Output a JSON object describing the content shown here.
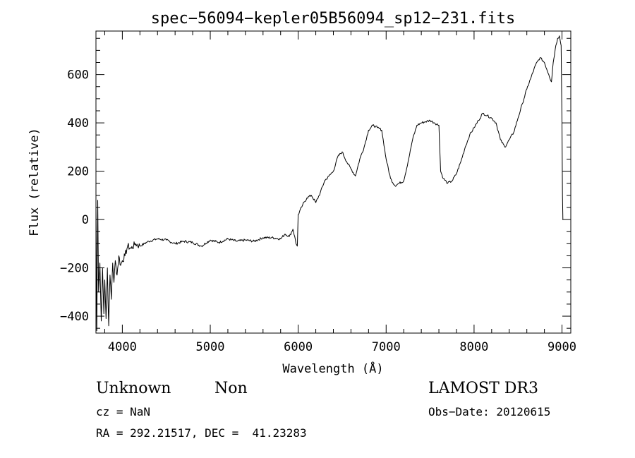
{
  "chart_data": {
    "type": "line",
    "title": "spec−56094−kepler05B56094_sp12−231.fits",
    "xlabel": "Wavelength (Å)",
    "ylabel": "Flux (relative)",
    "xlim": [
      3700,
      9100
    ],
    "ylim": [
      -470,
      780
    ],
    "xticks": [
      4000,
      5000,
      6000,
      7000,
      8000,
      9000
    ],
    "xtick_labels": [
      "4000",
      "5000",
      "6000",
      "7000",
      "8000",
      "9000"
    ],
    "yticks": [
      -400,
      -200,
      0,
      200,
      400,
      600
    ],
    "ytick_labels": [
      "−400",
      "−200",
      "0",
      "200",
      "400",
      "600"
    ],
    "grid": false,
    "series": [
      {
        "name": "flux",
        "x": [
          3700,
          3710,
          3720,
          3730,
          3745,
          3760,
          3775,
          3790,
          3800,
          3815,
          3830,
          3845,
          3860,
          3875,
          3890,
          3905,
          3920,
          3940,
          3960,
          3980,
          4000,
          4030,
          4060,
          4100,
          4150,
          4200,
          4300,
          4400,
          4500,
          4600,
          4700,
          4800,
          4900,
          5000,
          5100,
          5200,
          5300,
          5400,
          5500,
          5600,
          5700,
          5800,
          5850,
          5900,
          5940,
          5960,
          5975,
          5990,
          6000,
          6050,
          6100,
          6150,
          6200,
          6250,
          6300,
          6350,
          6400,
          6450,
          6500,
          6550,
          6600,
          6650,
          6700,
          6750,
          6800,
          6850,
          6880,
          6900,
          6950,
          7000,
          7050,
          7100,
          7150,
          7200,
          7250,
          7300,
          7350,
          7400,
          7450,
          7500,
          7550,
          7600,
          7620,
          7650,
          7700,
          7750,
          7800,
          7850,
          7900,
          7950,
          8000,
          8050,
          8100,
          8150,
          8200,
          8250,
          8300,
          8350,
          8400,
          8450,
          8500,
          8550,
          8600,
          8650,
          8700,
          8750,
          8800,
          8850,
          8880,
          8900,
          8930,
          8950,
          8970,
          8990,
          9000,
          9005,
          9010
        ],
        "y": [
          50,
          -460,
          80,
          -300,
          -180,
          -420,
          -200,
          -390,
          -250,
          -410,
          -200,
          -440,
          -230,
          -330,
          -180,
          -260,
          -170,
          -230,
          -150,
          -190,
          -170,
          -150,
          -110,
          -120,
          -100,
          -110,
          -90,
          -80,
          -85,
          -100,
          -90,
          -95,
          -110,
          -85,
          -95,
          -80,
          -90,
          -85,
          -90,
          -75,
          -75,
          -80,
          -60,
          -70,
          -40,
          -70,
          -100,
          -110,
          20,
          60,
          90,
          100,
          70,
          110,
          160,
          180,
          200,
          260,
          280,
          240,
          210,
          180,
          250,
          300,
          370,
          390,
          385,
          380,
          370,
          250,
          170,
          140,
          150,
          160,
          240,
          330,
          390,
          400,
          405,
          410,
          400,
          390,
          200,
          170,
          150,
          160,
          190,
          240,
          300,
          350,
          380,
          410,
          440,
          430,
          420,
          400,
          330,
          300,
          330,
          360,
          420,
          480,
          540,
          590,
          640,
          670,
          650,
          600,
          570,
          650,
          720,
          750,
          760,
          720,
          400,
          100,
          0
        ]
      }
    ]
  },
  "info": {
    "class_label": "Unknown",
    "subclass_label": "Non",
    "survey_label": "LAMOST DR3",
    "cz_text": "cz = NaN",
    "obs_date_text": "Obs−Date: 20120615",
    "coords_text": "RA = 292.21517, DEC =  41.23283"
  }
}
